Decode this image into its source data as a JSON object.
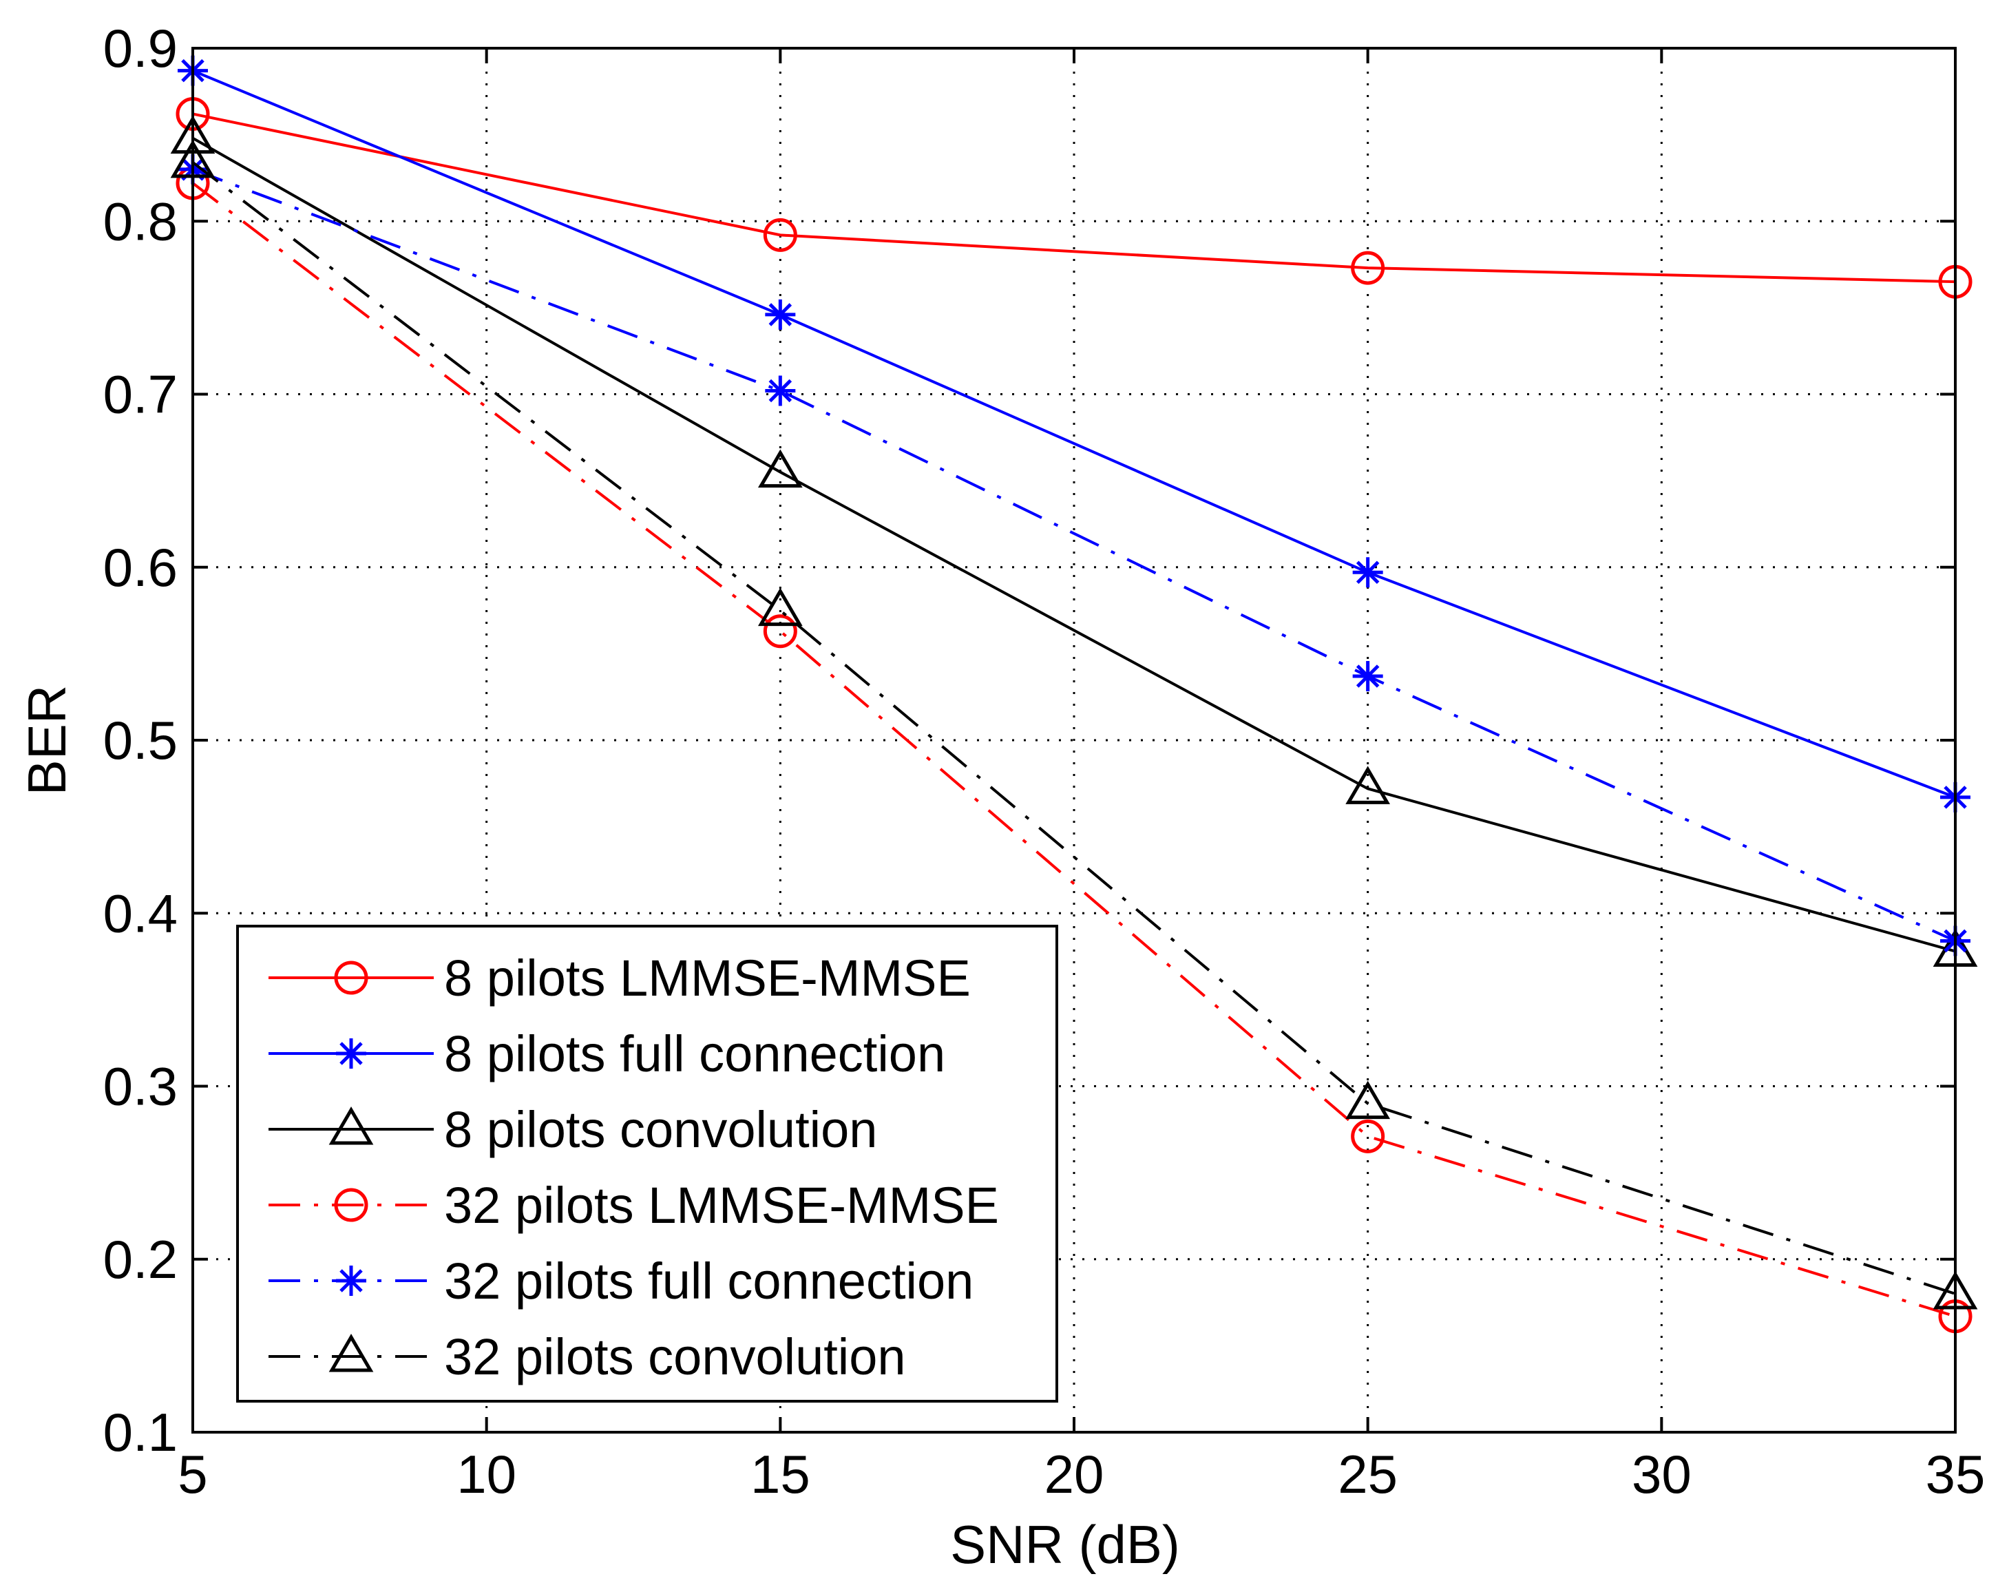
{
  "chart_data": {
    "type": "line",
    "title": "",
    "xlabel": "SNR (dB)",
    "ylabel": "BER",
    "xlim": [
      5,
      35
    ],
    "ylim": [
      0.1,
      0.9
    ],
    "xticks": [
      5,
      10,
      15,
      20,
      25,
      30,
      35
    ],
    "yticks": [
      0.1,
      0.2,
      0.3,
      0.4,
      0.5,
      0.6,
      0.7,
      0.8,
      0.9
    ],
    "xtick_labels": [
      "5",
      "10",
      "15",
      "20",
      "25",
      "30",
      "35"
    ],
    "ytick_labels": [
      "0.1",
      "0.2",
      "0.3",
      "0.4",
      "0.5",
      "0.6",
      "0.7",
      "0.8",
      "0.9"
    ],
    "grid": true,
    "legend_position": "bottom-left",
    "x": [
      5,
      15,
      25,
      35
    ],
    "series": [
      {
        "name": "8 pilots LMMSE-MMSE",
        "values": [
          0.862,
          0.792,
          0.773,
          0.765
        ],
        "color": "#ff0000",
        "marker": "circle",
        "linestyle": "solid"
      },
      {
        "name": "8 pilots full connection",
        "values": [
          0.887,
          0.746,
          0.597,
          0.467
        ],
        "color": "#0000ff",
        "marker": "star",
        "linestyle": "solid"
      },
      {
        "name": "8 pilots convolution",
        "values": [
          0.848,
          0.655,
          0.472,
          0.378
        ],
        "color": "#000000",
        "marker": "triangle",
        "linestyle": "solid"
      },
      {
        "name": "32 pilots LMMSE-MMSE",
        "values": [
          0.822,
          0.563,
          0.271,
          0.167
        ],
        "color": "#ff0000",
        "marker": "circle",
        "linestyle": "dashdot"
      },
      {
        "name": "32 pilots full connection",
        "values": [
          0.83,
          0.702,
          0.537,
          0.384
        ],
        "color": "#0000ff",
        "marker": "star",
        "linestyle": "dashdot"
      },
      {
        "name": "32 pilots convolution",
        "values": [
          0.834,
          0.575,
          0.29,
          0.18
        ],
        "color": "#000000",
        "marker": "triangle",
        "linestyle": "dashdot"
      }
    ]
  }
}
